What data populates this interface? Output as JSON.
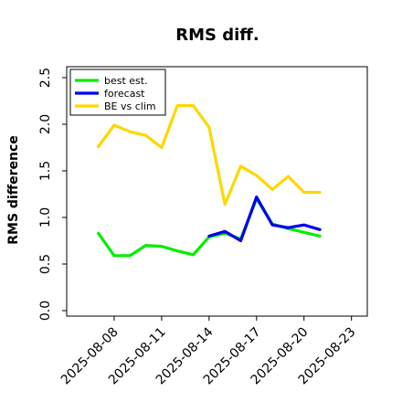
{
  "chart_data": {
    "type": "line",
    "title": "RMS diff.",
    "ylabel": "RMS difference",
    "xlabel": "",
    "ylim": [
      0.0,
      2.5
    ],
    "yticks": [
      0.0,
      0.5,
      1.0,
      1.5,
      2.0,
      2.5
    ],
    "ytick_labels": [
      "0.0",
      "0.5",
      "1.0",
      "1.5",
      "2.0",
      "2.5"
    ],
    "xlim": [
      "2025-08-05",
      "2025-08-24"
    ],
    "xticks": [
      "2025-08-08",
      "2025-08-11",
      "2025-08-14",
      "2025-08-17",
      "2025-08-20",
      "2025-08-23"
    ],
    "xtick_labels": [
      "2025-08-08",
      "2025-08-11",
      "2025-08-14",
      "2025-08-17",
      "2025-08-20",
      "2025-08-23"
    ],
    "highlighted_xtick": "2025-08-14",
    "highlight_color": "#228B22",
    "legend_position": "upper-left",
    "grid": false,
    "series": [
      {
        "name": "best est.",
        "color": "#00ee00",
        "x": [
          "2025-08-07",
          "2025-08-08",
          "2025-08-09",
          "2025-08-10",
          "2025-08-11",
          "2025-08-12",
          "2025-08-13",
          "2025-08-14",
          "2025-08-15",
          "2025-08-16",
          "2025-08-17",
          "2025-08-18",
          "2025-08-19",
          "2025-08-20",
          "2025-08-21"
        ],
        "values": [
          0.83,
          0.59,
          0.59,
          0.7,
          0.69,
          0.64,
          0.6,
          0.79,
          0.83,
          0.77,
          1.2,
          0.93,
          0.88,
          0.84,
          0.8
        ]
      },
      {
        "name": "forecast",
        "color": "#0000ee",
        "x": [
          "2025-08-14",
          "2025-08-15",
          "2025-08-16",
          "2025-08-17",
          "2025-08-18",
          "2025-08-19",
          "2025-08-20",
          "2025-08-21"
        ],
        "values": [
          0.8,
          0.85,
          0.75,
          1.22,
          0.92,
          0.89,
          0.92,
          0.87
        ]
      },
      {
        "name": "BE vs clim",
        "color": "#ffd700",
        "x": [
          "2025-08-07",
          "2025-08-08",
          "2025-08-09",
          "2025-08-10",
          "2025-08-11",
          "2025-08-12",
          "2025-08-13",
          "2025-08-14",
          "2025-08-15",
          "2025-08-16",
          "2025-08-17",
          "2025-08-18",
          "2025-08-19",
          "2025-08-20",
          "2025-08-21"
        ],
        "values": [
          1.76,
          1.99,
          1.92,
          1.88,
          1.75,
          2.2,
          2.2,
          1.97,
          1.14,
          1.55,
          1.45,
          1.3,
          1.44,
          1.27,
          1.27
        ]
      }
    ]
  }
}
